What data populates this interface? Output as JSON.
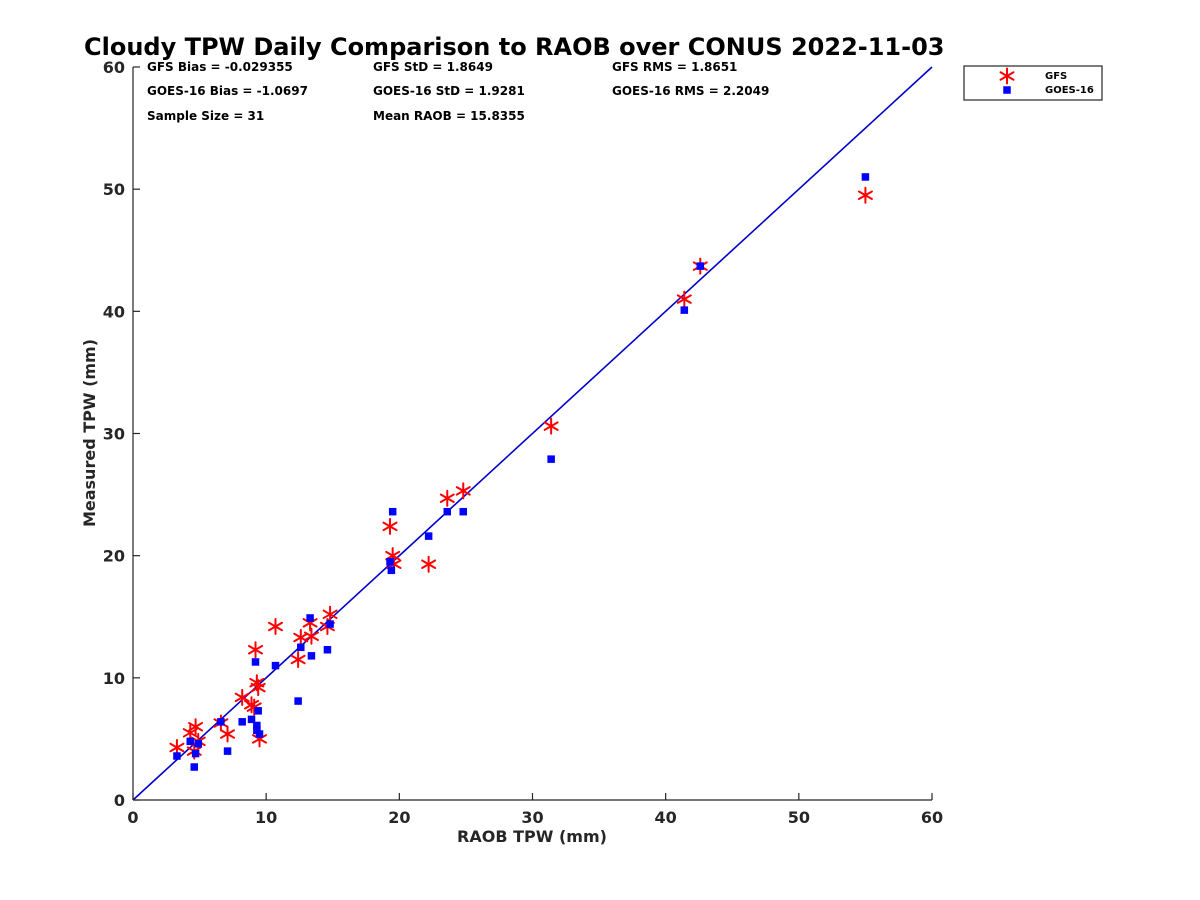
{
  "chart_data": {
    "type": "scatter",
    "title": "Cloudy TPW Daily Comparison to RAOB over CONUS 2022-11-03",
    "xlabel": "RAOB TPW (mm)",
    "ylabel": "Measured TPW (mm)",
    "xlim": [
      0,
      60
    ],
    "ylim": [
      0,
      60
    ],
    "xticks": [
      "0",
      "10",
      "20",
      "30",
      "40",
      "50",
      "60"
    ],
    "yticks": [
      "0",
      "10",
      "20",
      "30",
      "40",
      "50",
      "60"
    ],
    "grid": false,
    "legend_placement": "outside top-right",
    "stats": {
      "gfs_bias": "GFS Bias = -0.029355",
      "goes_bias": "GOES-16 Bias = -1.0697",
      "sample_size": "Sample Size = 31",
      "gfs_std": "GFS StD = 1.8649",
      "goes_std": "GOES-16 StD = 1.9281",
      "mean_raob": "Mean RAOB = 15.8355",
      "gfs_rms": "GFS RMS = 1.8651",
      "goes_rms": "GOES-16 RMS = 2.2049"
    },
    "reference_line": {
      "x": [
        0,
        60
      ],
      "y": [
        0,
        60
      ],
      "color": "#0000cc"
    },
    "series": [
      {
        "name": "GFS",
        "marker": "asterisk",
        "color": "#ff0000",
        "points": [
          [
            3.3,
            4.3
          ],
          [
            4.3,
            5.5
          ],
          [
            4.6,
            4.0
          ],
          [
            4.7,
            6.0
          ],
          [
            4.9,
            4.8
          ],
          [
            6.6,
            6.3
          ],
          [
            7.1,
            5.4
          ],
          [
            8.2,
            8.4
          ],
          [
            8.9,
            7.8
          ],
          [
            9.2,
            12.3
          ],
          [
            9.3,
            9.6
          ],
          [
            9.4,
            9.2
          ],
          [
            9.5,
            5.0
          ],
          [
            10.7,
            14.2
          ],
          [
            12.4,
            11.5
          ],
          [
            12.6,
            13.3
          ],
          [
            13.3,
            14.5
          ],
          [
            13.4,
            13.4
          ],
          [
            14.6,
            14.2
          ],
          [
            14.8,
            15.2
          ],
          [
            19.3,
            22.4
          ],
          [
            19.5,
            20.0
          ],
          [
            19.6,
            19.3
          ],
          [
            22.2,
            19.3
          ],
          [
            23.6,
            24.7
          ],
          [
            24.8,
            25.3
          ],
          [
            31.4,
            30.6
          ],
          [
            41.4,
            41.0
          ],
          [
            42.6,
            43.7
          ],
          [
            55.0,
            49.5
          ],
          [
            9.1,
            7.6
          ]
        ]
      },
      {
        "name": "GOES-16",
        "marker": "square",
        "color": "#0000ff",
        "points": [
          [
            3.3,
            3.6
          ],
          [
            4.3,
            4.8
          ],
          [
            4.6,
            2.7
          ],
          [
            4.7,
            3.8
          ],
          [
            4.9,
            4.6
          ],
          [
            6.6,
            6.4
          ],
          [
            7.1,
            4.0
          ],
          [
            8.2,
            6.4
          ],
          [
            8.9,
            6.6
          ],
          [
            9.2,
            11.3
          ],
          [
            9.3,
            6.1
          ],
          [
            9.4,
            7.3
          ],
          [
            9.5,
            5.4
          ],
          [
            10.7,
            11.0
          ],
          [
            12.4,
            8.1
          ],
          [
            12.6,
            12.5
          ],
          [
            13.3,
            14.9
          ],
          [
            13.4,
            11.8
          ],
          [
            14.6,
            12.3
          ],
          [
            14.8,
            14.4
          ],
          [
            19.3,
            19.5
          ],
          [
            19.4,
            18.8
          ],
          [
            19.5,
            23.6
          ],
          [
            22.2,
            21.6
          ],
          [
            23.6,
            23.6
          ],
          [
            24.8,
            23.6
          ],
          [
            31.4,
            27.9
          ],
          [
            41.4,
            40.1
          ],
          [
            42.6,
            43.7
          ],
          [
            55.0,
            51.0
          ],
          [
            9.3,
            5.7
          ]
        ]
      }
    ]
  }
}
